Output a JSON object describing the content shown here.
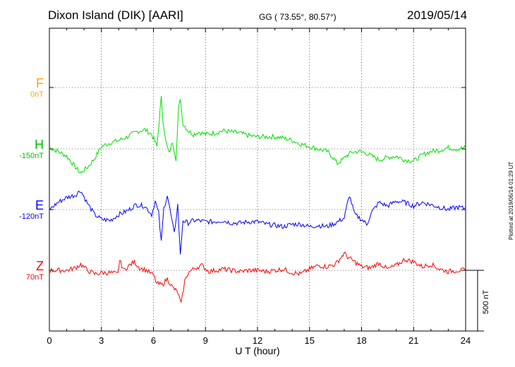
{
  "header": {
    "title": "Dixon Island (DIK)  [AARI]",
    "coords": "GG ( 73.55°,  80.57°)",
    "date": "2019/05/14"
  },
  "plotted_note": "Plotted at 2019/06/14 01:29 UT",
  "scale_bar": {
    "label": "500 nT",
    "value_nT": 500
  },
  "chart_data": {
    "type": "line",
    "title": "Dixon Island (DIK)  [AARI]",
    "xlabel": "U T (hour)",
    "ylabel": "",
    "xlim": [
      0,
      24
    ],
    "xticks": [
      0,
      3,
      6,
      9,
      12,
      15,
      18,
      21,
      24
    ],
    "grid": true,
    "series": [
      {
        "name": "F",
        "baseline": "0nT",
        "color": "#ffa500",
        "x": [],
        "y": []
      },
      {
        "name": "H",
        "baseline": "-150nT",
        "color": "#00e000",
        "x": [
          0,
          0.5,
          1,
          1.5,
          1.8,
          2.2,
          2.6,
          3,
          3.5,
          4,
          4.5,
          5,
          5.5,
          5.9,
          6.2,
          6.45,
          6.55,
          6.7,
          6.9,
          7.1,
          7.3,
          7.45,
          7.55,
          7.7,
          8,
          8.3,
          8.6,
          9,
          9.5,
          10,
          10.5,
          11,
          11.5,
          12,
          12.5,
          13,
          13.5,
          14,
          14.5,
          15,
          15.5,
          16,
          16.3,
          16.6,
          16.9,
          17.1,
          17.4,
          17.8,
          18.2,
          18.6,
          19,
          19.5,
          20,
          20.5,
          21,
          21.5,
          22,
          22.5,
          23,
          23.5,
          24
        ],
        "y": [
          10,
          -20,
          -60,
          -150,
          -200,
          -150,
          -80,
          20,
          50,
          70,
          100,
          140,
          160,
          120,
          20,
          420,
          240,
          70,
          -40,
          60,
          -80,
          330,
          420,
          210,
          150,
          120,
          140,
          120,
          130,
          150,
          140,
          130,
          110,
          100,
          100,
          100,
          90,
          70,
          40,
          20,
          0,
          -20,
          -60,
          -120,
          -90,
          -60,
          -30,
          -20,
          -30,
          -60,
          -90,
          -70,
          -60,
          -90,
          -100,
          -50,
          -20,
          -10,
          10,
          0,
          10
        ]
      },
      {
        "name": "E",
        "baseline": "-120nT",
        "color": "#0000ff",
        "x": [
          0,
          0.5,
          1,
          1.5,
          1.8,
          2.2,
          2.6,
          3,
          3.5,
          4,
          4.5,
          5,
          5.5,
          5.9,
          6.1,
          6.3,
          6.45,
          6.6,
          6.8,
          7,
          7.2,
          7.4,
          7.55,
          7.7,
          8,
          8.3,
          8.6,
          9,
          9.5,
          10,
          10.5,
          11,
          11.5,
          12,
          12.5,
          13,
          13.5,
          14,
          14.5,
          15,
          15.5,
          16,
          16.5,
          17,
          17.3,
          17.6,
          18,
          18.3,
          18.6,
          19,
          19.5,
          20,
          20.5,
          21,
          21.5,
          22,
          22.5,
          23,
          23.5,
          24
        ],
        "y": [
          0,
          60,
          100,
          120,
          160,
          50,
          -40,
          -80,
          -90,
          -40,
          -10,
          40,
          30,
          -40,
          70,
          -30,
          -270,
          10,
          120,
          -40,
          -200,
          40,
          -380,
          -90,
          -110,
          -90,
          -90,
          -100,
          -100,
          -90,
          -110,
          -110,
          -100,
          -100,
          -120,
          -130,
          -140,
          -120,
          -120,
          -140,
          -130,
          -140,
          -110,
          -70,
          120,
          -40,
          -80,
          -120,
          -20,
          60,
          30,
          70,
          60,
          30,
          60,
          40,
          20,
          0,
          20,
          10
        ]
      },
      {
        "name": "Z",
        "baseline": "70nT",
        "color": "#ff0000",
        "x": [
          0,
          0.5,
          1,
          1.5,
          1.8,
          2.2,
          2.6,
          3,
          3.5,
          3.95,
          4.05,
          4.3,
          4.6,
          4.9,
          5.2,
          5.6,
          6,
          6.2,
          6.5,
          6.8,
          7.1,
          7.4,
          7.6,
          7.8,
          8,
          8.4,
          8.8,
          9.2,
          9.6,
          10,
          10.5,
          11,
          11.5,
          12,
          12.5,
          13,
          13.5,
          14,
          14.5,
          15,
          15.5,
          16,
          16.5,
          17,
          17.2,
          17.5,
          18,
          18.5,
          19,
          19.5,
          20,
          20.5,
          21,
          21.5,
          22,
          22.5,
          23,
          23.5,
          24
        ],
        "y": [
          0,
          0,
          0,
          20,
          50,
          0,
          -30,
          -20,
          -20,
          -30,
          80,
          0,
          40,
          70,
          20,
          0,
          -40,
          -110,
          -120,
          -70,
          -140,
          -180,
          -280,
          -90,
          -20,
          20,
          40,
          -10,
          0,
          10,
          0,
          -10,
          0,
          0,
          -10,
          0,
          10,
          -20,
          -30,
          10,
          40,
          30,
          50,
          140,
          110,
          80,
          30,
          20,
          60,
          10,
          40,
          90,
          70,
          30,
          50,
          10,
          -10,
          0,
          0
        ]
      }
    ]
  }
}
